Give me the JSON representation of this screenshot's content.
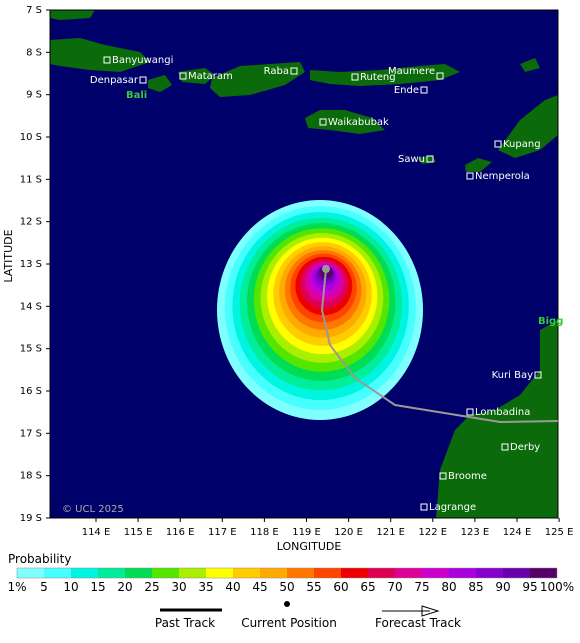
{
  "map": {
    "latitude_ticks": [
      "7 S",
      "8 S",
      "9 S",
      "10 S",
      "11 S",
      "12 S",
      "13 S",
      "14 S",
      "15 S",
      "16 S",
      "17 S",
      "18 S",
      "19 S"
    ],
    "longitude_ticks": [
      "114 E",
      "115 E",
      "116 E",
      "117 E",
      "118 E",
      "119 E",
      "120 E",
      "121 E",
      "122 E",
      "123 E",
      "124 E",
      "125 E"
    ],
    "y_axis_label": "LATITUDE",
    "x_axis_label": "LONGITUDE",
    "copyright": "© UCL 2025",
    "regions": [
      "Bali",
      "Bigg"
    ],
    "places": [
      "Banyuwangi",
      "Denpasar",
      "Mataram",
      "Raba",
      "Ruteng",
      "Maumere",
      "Ende",
      "Waikabubak",
      "Kupang",
      "Sawu",
      "Nemperola",
      "Kuri Bay",
      "Lombadina",
      "Derby",
      "Broome",
      "Lagrange"
    ],
    "ocean_color": "#00006b",
    "land_color": "#0b6b0b",
    "track_color": "#999999"
  },
  "legend": {
    "title": "Probability",
    "labels": [
      "1%",
      "5",
      "10",
      "15",
      "20",
      "25",
      "30",
      "35",
      "40",
      "45",
      "50",
      "55",
      "60",
      "65",
      "70",
      "75",
      "80",
      "85",
      "90",
      "95",
      "100%"
    ],
    "colors": [
      "#80ffff",
      "#48ffff",
      "#00f5e0",
      "#00ee99",
      "#00dd55",
      "#55e600",
      "#aaee00",
      "#ffff00",
      "#ffcc00",
      "#ffaa00",
      "#ff7700",
      "#ff4400",
      "#ee0000",
      "#dd0055",
      "#dd0099",
      "#cc00cc",
      "#aa00dd",
      "#8800cc",
      "#6a00aa",
      "#550066"
    ],
    "items": [
      "Past Track",
      "Current Position",
      "Forecast Track"
    ]
  }
}
